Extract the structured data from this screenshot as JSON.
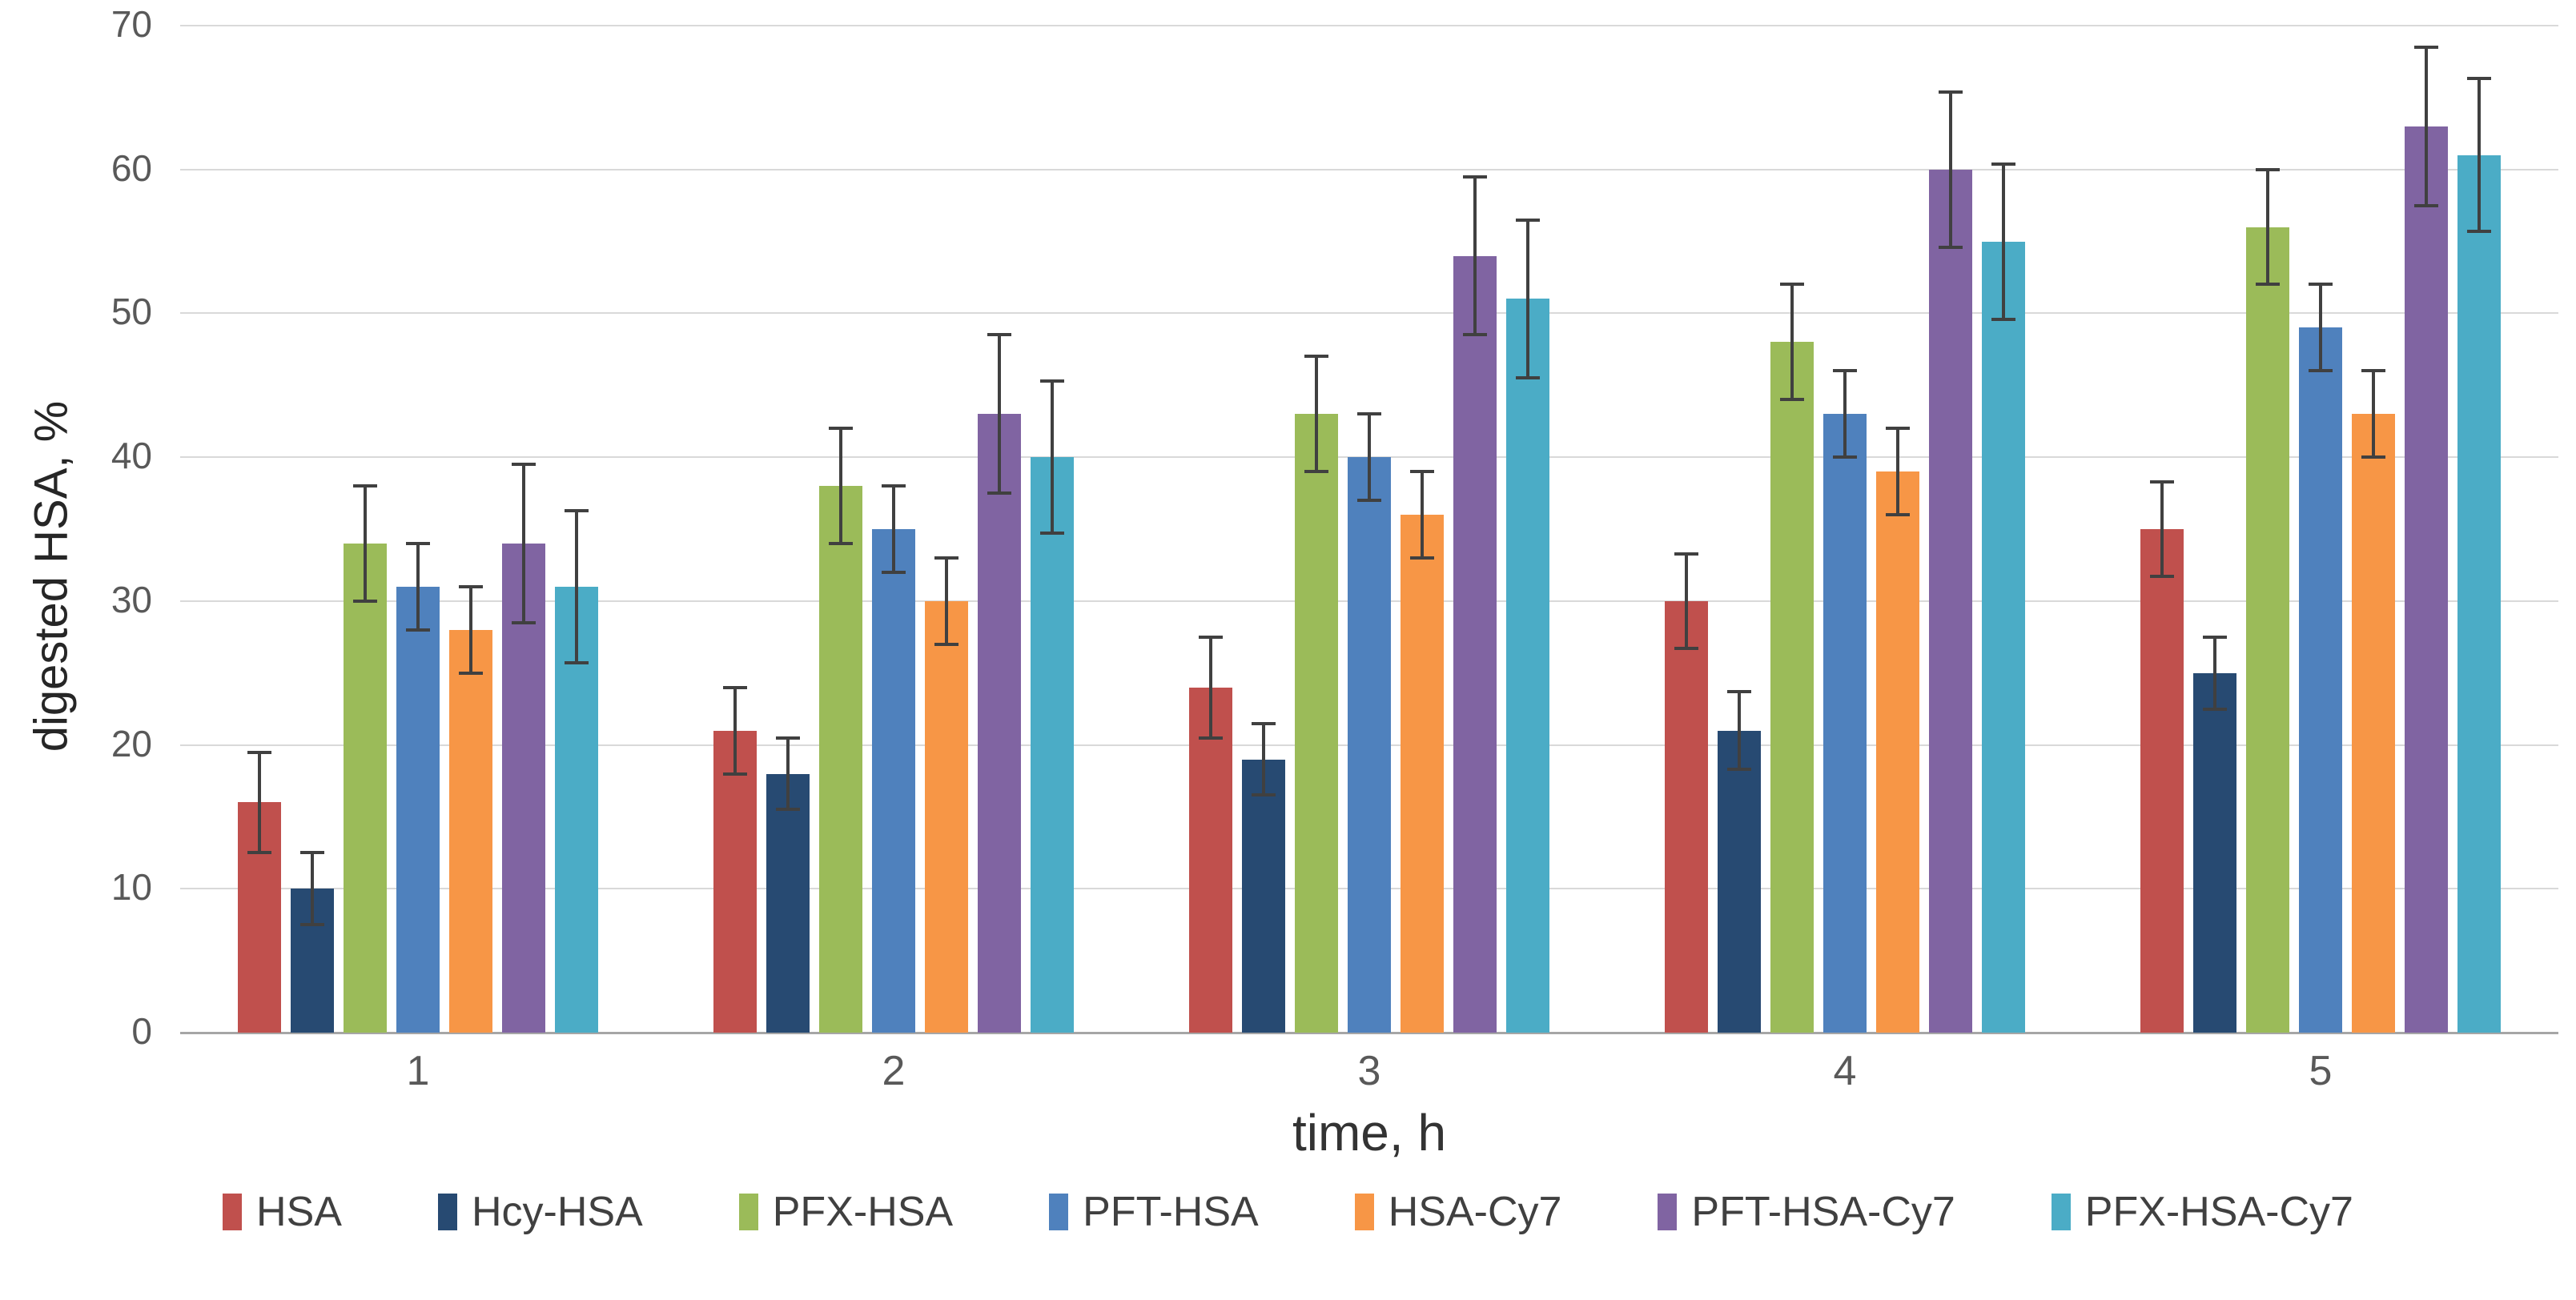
{
  "chart_data": {
    "type": "bar",
    "title": "",
    "xlabel": "time, h",
    "ylabel": "digested HSA, %",
    "categories": [
      "1",
      "2",
      "3",
      "4",
      "5"
    ],
    "ylim": [
      0,
      70
    ],
    "ytick_step": 10,
    "grid": "horizontal",
    "legend_position": "bottom",
    "error_bars": true,
    "colors": {
      "gridline": "#d9d9d9",
      "axis": "#a6a6a6",
      "error_bar": "#404040",
      "tick_text": "#595959",
      "title_text": "#262626"
    },
    "series": [
      {
        "name": "HSA",
        "color": "#C0504D",
        "values": [
          16,
          21,
          24,
          30,
          35
        ],
        "errors": [
          3.5,
          3,
          3.5,
          3.3,
          3.3
        ]
      },
      {
        "name": "Hcy-HSA",
        "color": "#274A72",
        "values": [
          10,
          18,
          19,
          21,
          25
        ],
        "errors": [
          2.5,
          2.5,
          2.5,
          2.7,
          2.5
        ]
      },
      {
        "name": "PFX-HSA",
        "color": "#9BBB59",
        "values": [
          34,
          38,
          43,
          48,
          56
        ],
        "errors": [
          4,
          4,
          4,
          4,
          4
        ]
      },
      {
        "name": "PFT-HSA",
        "color": "#4F81BD",
        "values": [
          31,
          35,
          40,
          43,
          49
        ],
        "errors": [
          3,
          3,
          3,
          3,
          3
        ]
      },
      {
        "name": "HSA-Cy7",
        "color": "#F79646",
        "values": [
          28,
          30,
          36,
          39,
          43
        ],
        "errors": [
          3,
          3,
          3,
          3,
          3
        ]
      },
      {
        "name": "PFT-HSA-Cy7",
        "color": "#8064A2",
        "values": [
          34,
          43,
          54,
          60,
          63
        ],
        "errors": [
          5.5,
          5.5,
          5.5,
          5.4,
          5.5
        ]
      },
      {
        "name": "PFX-HSA-Cy7",
        "color": "#4BACC6",
        "values": [
          31,
          40,
          51,
          55,
          61
        ],
        "errors": [
          5.3,
          5.3,
          5.5,
          5.4,
          5.3
        ]
      }
    ]
  }
}
